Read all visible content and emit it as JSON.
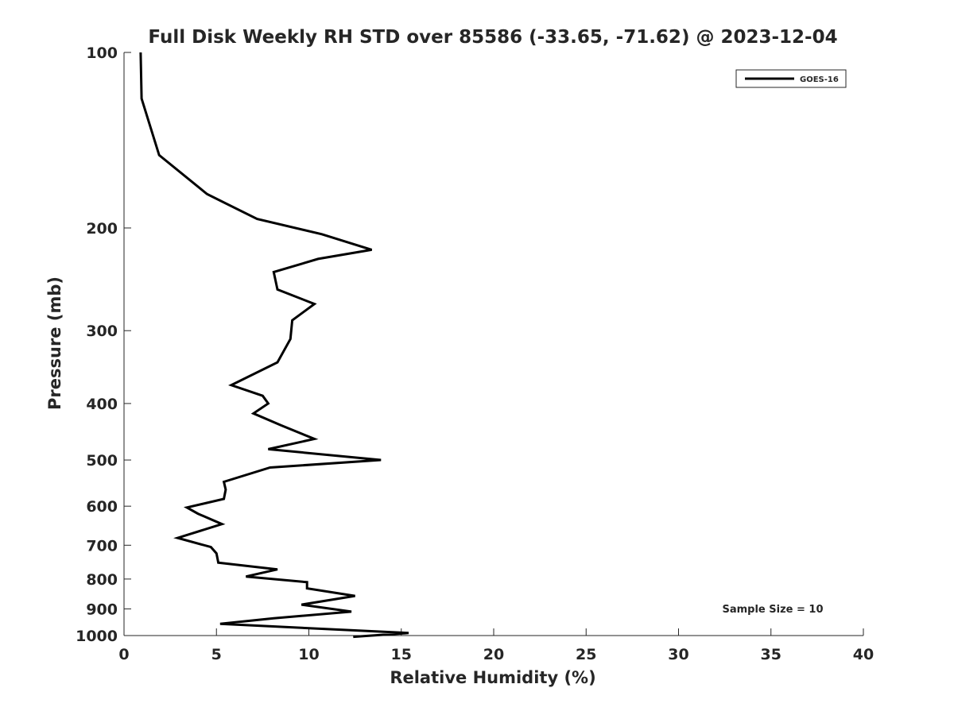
{
  "chart_data": {
    "type": "line",
    "title": "Full Disk Weekly RH STD over 85586 (-33.65, -71.62) @ 2023-12-04",
    "xlabel": "Relative Humidity (%)",
    "ylabel": "Pressure (mb)",
    "xlim": [
      0,
      40
    ],
    "ylim": [
      100,
      1000
    ],
    "y_scale": "log",
    "y_reversed": true,
    "grid": false,
    "legend_position": "top-right",
    "x_ticks": [
      "0",
      "5",
      "10",
      "15",
      "20",
      "25",
      "30",
      "35",
      "40"
    ],
    "y_ticks": [
      "100",
      "200",
      "300",
      "400",
      "500",
      "600",
      "700",
      "800",
      "900",
      "1000"
    ],
    "annotation": "Sample Size = 10",
    "series": [
      {
        "name": "GOES-16",
        "color": "#000000",
        "points": [
          [
            0.9,
            100
          ],
          [
            0.95,
            120
          ],
          [
            1.9,
            150
          ],
          [
            4.5,
            175
          ],
          [
            7.2,
            193
          ],
          [
            10.7,
            205
          ],
          [
            13.4,
            218
          ],
          [
            10.5,
            226
          ],
          [
            8.1,
            238
          ],
          [
            8.3,
            255
          ],
          [
            10.3,
            270
          ],
          [
            9.1,
            288
          ],
          [
            9.0,
            310
          ],
          [
            8.3,
            340
          ],
          [
            5.8,
            372
          ],
          [
            7.5,
            388
          ],
          [
            7.8,
            400
          ],
          [
            7.0,
            416
          ],
          [
            8.5,
            436
          ],
          [
            10.3,
            460
          ],
          [
            7.8,
            479
          ],
          [
            13.9,
            500
          ],
          [
            7.9,
            515
          ],
          [
            5.4,
            545
          ],
          [
            5.5,
            562
          ],
          [
            5.4,
            583
          ],
          [
            3.4,
            603
          ],
          [
            4.0,
            618
          ],
          [
            5.3,
            644
          ],
          [
            2.9,
            680
          ],
          [
            4.7,
            705
          ],
          [
            5.0,
            723
          ],
          [
            5.1,
            750
          ],
          [
            8.3,
            770
          ],
          [
            6.6,
            792
          ],
          [
            9.9,
            810
          ],
          [
            9.9,
            830
          ],
          [
            12.5,
            855
          ],
          [
            9.6,
            885
          ],
          [
            12.3,
            910
          ],
          [
            8.1,
            934
          ],
          [
            5.2,
            955
          ],
          [
            15.4,
            990
          ],
          [
            12.4,
            1005
          ]
        ]
      }
    ]
  }
}
